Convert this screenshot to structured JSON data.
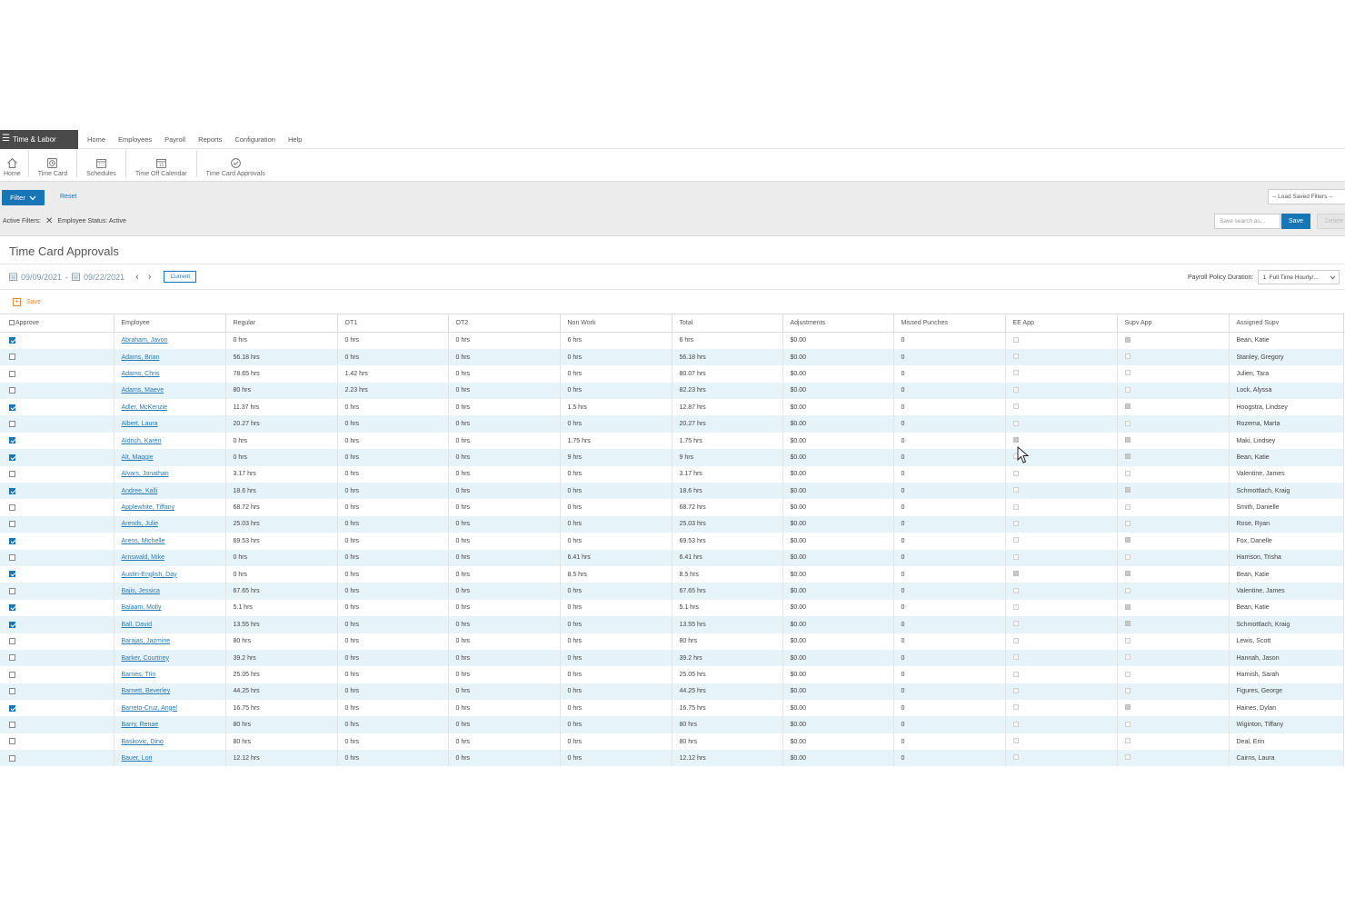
{
  "topbar": {
    "brand": "Time & Labor",
    "nav": [
      "Home",
      "Employees",
      "Payroll",
      "Reports",
      "Configuration",
      "Help"
    ]
  },
  "toolbar": {
    "items": [
      {
        "label": "Home",
        "icon": "home-icon"
      },
      {
        "label": "Time Card",
        "icon": "timecard-icon"
      },
      {
        "label": "Schedules",
        "icon": "schedules-icon"
      },
      {
        "label": "Time Off Calendar",
        "icon": "calendar-icon"
      },
      {
        "label": "Time Card Approvals",
        "icon": "check-circle-icon"
      }
    ]
  },
  "filters": {
    "filter_label": "Filter",
    "reset_label": "Reset",
    "active_label": "Active Filters:",
    "active_chip": "Employee Status: Active",
    "saved_filters_placeholder": "-- Load Saved Filters --",
    "save_search_placeholder": "Save search as...",
    "save_label": "Save",
    "delete_label": "Delete"
  },
  "page": {
    "title": "Time Card Approvals",
    "start_date": "09/09/2021",
    "end_date": "09/22/2021",
    "date_sep": "-",
    "current_label": "Current",
    "policy_label": "Payroll Policy Duration:",
    "policy_value": "1. Full Time Hourly/...",
    "save_label": "Save"
  },
  "table": {
    "columns": [
      "Approve",
      "Employee",
      "Regular",
      "OT1",
      "OT2",
      "Non Work",
      "Total",
      "Adjustments",
      "Missed Punches",
      "EE App",
      "Supv App",
      "Assigned Supv"
    ],
    "rows": [
      {
        "approve": true,
        "employee": "Abraham, Javon",
        "regular": "0 hrs",
        "ot1": "0 hrs",
        "ot2": "0 hrs",
        "nonwork": "6 hrs",
        "total": "6 hrs",
        "adj": "$0.00",
        "missed": "0",
        "ee": false,
        "supv": true,
        "assigned": "Bean, Katie"
      },
      {
        "approve": false,
        "employee": "Adams, Brian",
        "regular": "56.18 hrs",
        "ot1": "0 hrs",
        "ot2": "0 hrs",
        "nonwork": "0 hrs",
        "total": "56.18 hrs",
        "adj": "$0.00",
        "missed": "0",
        "ee": false,
        "supv": false,
        "assigned": "Stanley, Gregory"
      },
      {
        "approve": false,
        "employee": "Adams, Chris",
        "regular": "78.65 hrs",
        "ot1": "1.42 hrs",
        "ot2": "0 hrs",
        "nonwork": "0 hrs",
        "total": "80.07 hrs",
        "adj": "$0.00",
        "missed": "0",
        "ee": false,
        "supv": false,
        "assigned": "Julien, Tara"
      },
      {
        "approve": false,
        "employee": "Adams, Maeve",
        "regular": "80 hrs",
        "ot1": "2.23 hrs",
        "ot2": "0 hrs",
        "nonwork": "0 hrs",
        "total": "82.23 hrs",
        "adj": "$0.00",
        "missed": "0",
        "ee": false,
        "supv": false,
        "assigned": "Lock, Alyssa"
      },
      {
        "approve": true,
        "employee": "Adler, McKenzie",
        "regular": "11.37 hrs",
        "ot1": "0 hrs",
        "ot2": "0 hrs",
        "nonwork": "1.5 hrs",
        "total": "12.87 hrs",
        "adj": "$0.00",
        "missed": "0",
        "ee": false,
        "supv": true,
        "assigned": "Hoogstra, Lindsey"
      },
      {
        "approve": false,
        "employee": "Albert, Laura",
        "regular": "20.27 hrs",
        "ot1": "0 hrs",
        "ot2": "0 hrs",
        "nonwork": "0 hrs",
        "total": "20.27 hrs",
        "adj": "$0.00",
        "missed": "0",
        "ee": false,
        "supv": false,
        "assigned": "Rozema, Marta"
      },
      {
        "approve": true,
        "employee": "Aldrich, Karen",
        "regular": "0 hrs",
        "ot1": "0 hrs",
        "ot2": "0 hrs",
        "nonwork": "1.75 hrs",
        "total": "1.75 hrs",
        "adj": "$0.00",
        "missed": "0",
        "ee": true,
        "supv": true,
        "assigned": "Maki, Lindsey"
      },
      {
        "approve": true,
        "employee": "Alt, Maggie",
        "regular": "0 hrs",
        "ot1": "0 hrs",
        "ot2": "0 hrs",
        "nonwork": "9 hrs",
        "total": "9 hrs",
        "adj": "$0.00",
        "missed": "0",
        "ee": false,
        "supv": true,
        "assigned": "Bean, Katie"
      },
      {
        "approve": false,
        "employee": "Alvars, Jonathan",
        "regular": "3.17 hrs",
        "ot1": "0 hrs",
        "ot2": "0 hrs",
        "nonwork": "0 hrs",
        "total": "3.17 hrs",
        "adj": "$0.00",
        "missed": "0",
        "ee": false,
        "supv": false,
        "assigned": "Valentine, James"
      },
      {
        "approve": true,
        "employee": "Andree, Kalli",
        "regular": "18.6 hrs",
        "ot1": "0 hrs",
        "ot2": "0 hrs",
        "nonwork": "0 hrs",
        "total": "18.6 hrs",
        "adj": "$0.00",
        "missed": "0",
        "ee": false,
        "supv": true,
        "assigned": "Schmottlach, Kraig"
      },
      {
        "approve": false,
        "employee": "Applewhite, Tiffany",
        "regular": "68.72 hrs",
        "ot1": "0 hrs",
        "ot2": "0 hrs",
        "nonwork": "0 hrs",
        "total": "68.72 hrs",
        "adj": "$0.00",
        "missed": "0",
        "ee": false,
        "supv": false,
        "assigned": "Smith, Danielle"
      },
      {
        "approve": false,
        "employee": "Arends, Julie",
        "regular": "25.03 hrs",
        "ot1": "0 hrs",
        "ot2": "0 hrs",
        "nonwork": "0 hrs",
        "total": "25.03 hrs",
        "adj": "$0.00",
        "missed": "0",
        "ee": false,
        "supv": false,
        "assigned": "Rose, Ryan"
      },
      {
        "approve": true,
        "employee": "Arens, Michelle",
        "regular": "69.53 hrs",
        "ot1": "0 hrs",
        "ot2": "0 hrs",
        "nonwork": "0 hrs",
        "total": "69.53 hrs",
        "adj": "$0.00",
        "missed": "0",
        "ee": false,
        "supv": true,
        "assigned": "Fox, Danelle"
      },
      {
        "approve": false,
        "employee": "Arnswald, Mike",
        "regular": "0 hrs",
        "ot1": "0 hrs",
        "ot2": "0 hrs",
        "nonwork": "6.41 hrs",
        "total": "6.41 hrs",
        "adj": "$0.00",
        "missed": "0",
        "ee": false,
        "supv": false,
        "assigned": "Harrison, Trisha"
      },
      {
        "approve": true,
        "employee": "Austin-English, Day",
        "regular": "0 hrs",
        "ot1": "0 hrs",
        "ot2": "0 hrs",
        "nonwork": "8.5 hrs",
        "total": "8.5 hrs",
        "adj": "$0.00",
        "missed": "0",
        "ee": true,
        "supv": true,
        "assigned": "Bean, Katie"
      },
      {
        "approve": false,
        "employee": "Bajis, Jessica",
        "regular": "67.65 hrs",
        "ot1": "0 hrs",
        "ot2": "0 hrs",
        "nonwork": "0 hrs",
        "total": "67.65 hrs",
        "adj": "$0.00",
        "missed": "0",
        "ee": false,
        "supv": false,
        "assigned": "Valentine, James"
      },
      {
        "approve": true,
        "employee": "Balaam, Molly",
        "regular": "5.1 hrs",
        "ot1": "0 hrs",
        "ot2": "0 hrs",
        "nonwork": "0 hrs",
        "total": "5.1 hrs",
        "adj": "$0.00",
        "missed": "0",
        "ee": false,
        "supv": true,
        "assigned": "Bean, Katie"
      },
      {
        "approve": true,
        "employee": "Ball, David",
        "regular": "13.55 hrs",
        "ot1": "0 hrs",
        "ot2": "0 hrs",
        "nonwork": "0 hrs",
        "total": "13.55 hrs",
        "adj": "$0.00",
        "missed": "0",
        "ee": false,
        "supv": true,
        "assigned": "Schmottlach, Kraig"
      },
      {
        "approve": false,
        "employee": "Barajas, Jazmine",
        "regular": "80 hrs",
        "ot1": "0 hrs",
        "ot2": "0 hrs",
        "nonwork": "0 hrs",
        "total": "80 hrs",
        "adj": "$0.00",
        "missed": "0",
        "ee": false,
        "supv": false,
        "assigned": "Lewis, Scott"
      },
      {
        "approve": false,
        "employee": "Barker, Courtney",
        "regular": "39.2 hrs",
        "ot1": "0 hrs",
        "ot2": "0 hrs",
        "nonwork": "0 hrs",
        "total": "39.2 hrs",
        "adj": "$0.00",
        "missed": "0",
        "ee": false,
        "supv": false,
        "assigned": "Hannah, Jason"
      },
      {
        "approve": false,
        "employee": "Barnes, Trin",
        "regular": "25.05 hrs",
        "ot1": "0 hrs",
        "ot2": "0 hrs",
        "nonwork": "0 hrs",
        "total": "25.05 hrs",
        "adj": "$0.00",
        "missed": "0",
        "ee": false,
        "supv": false,
        "assigned": "Harnish, Sarah"
      },
      {
        "approve": false,
        "employee": "Barnett, Beverley",
        "regular": "44.25 hrs",
        "ot1": "0 hrs",
        "ot2": "0 hrs",
        "nonwork": "0 hrs",
        "total": "44.25 hrs",
        "adj": "$0.00",
        "missed": "0",
        "ee": false,
        "supv": false,
        "assigned": "Figures, George"
      },
      {
        "approve": true,
        "employee": "Barreto-Cruz, Angel",
        "regular": "16.75 hrs",
        "ot1": "0 hrs",
        "ot2": "0 hrs",
        "nonwork": "0 hrs",
        "total": "16.75 hrs",
        "adj": "$0.00",
        "missed": "0",
        "ee": false,
        "supv": true,
        "assigned": "Haines, Dylan"
      },
      {
        "approve": false,
        "employee": "Barry, Renae",
        "regular": "80 hrs",
        "ot1": "0 hrs",
        "ot2": "0 hrs",
        "nonwork": "0 hrs",
        "total": "80 hrs",
        "adj": "$0.00",
        "missed": "0",
        "ee": false,
        "supv": false,
        "assigned": "Wiginton, Tiffany"
      },
      {
        "approve": false,
        "employee": "Baskovic, Dino",
        "regular": "80 hrs",
        "ot1": "0 hrs",
        "ot2": "0 hrs",
        "nonwork": "0 hrs",
        "total": "80 hrs",
        "adj": "$0.00",
        "missed": "0",
        "ee": false,
        "supv": false,
        "assigned": "Deal, Erin"
      },
      {
        "approve": false,
        "employee": "Bauer, Lori",
        "regular": "12.12 hrs",
        "ot1": "0 hrs",
        "ot2": "0 hrs",
        "nonwork": "0 hrs",
        "total": "12.12 hrs",
        "adj": "$0.00",
        "missed": "0",
        "ee": false,
        "supv": false,
        "assigned": "Cairns, Laura"
      }
    ]
  },
  "colors": {
    "primary": "#1976b6",
    "row_alt": "#e6f3f8",
    "brand_bg": "#4a4a4a",
    "save_accent": "#e08a3c"
  }
}
